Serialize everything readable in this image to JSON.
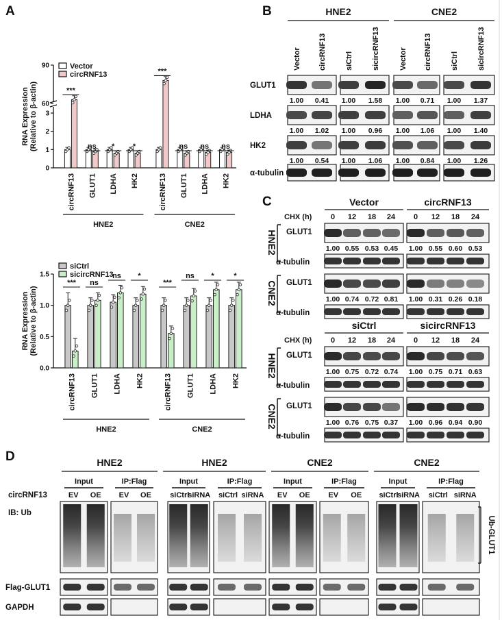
{
  "panels": {
    "A": "A",
    "B": "B",
    "C": "C",
    "D": "D"
  },
  "chart_data": [
    {
      "type": "bar",
      "ylabel": "RNA Expression",
      "ylabel_sub": "(Relative to β-actin)",
      "yticks": [
        "0",
        "1",
        "2",
        "3",
        "60",
        "90"
      ],
      "ylim": [
        0,
        90
      ],
      "axis_break": true,
      "legend": [
        "Vector",
        "circRNF13"
      ],
      "categories": [
        "circRNF13",
        "GLUT1",
        "LDHA",
        "HK2",
        "circRNF13",
        "GLUT1",
        "LDHA",
        "HK2"
      ],
      "groups": [
        "HNE2",
        "CNE2"
      ],
      "series": [
        {
          "name": "Vector",
          "color": "#ffffff",
          "values": [
            1.0,
            1.0,
            1.0,
            1.0,
            1.0,
            1.0,
            1.0,
            1.0
          ]
        },
        {
          "name": "circRNF13",
          "color": "#f2c9c9",
          "values": [
            63,
            0.9,
            0.8,
            0.8,
            78,
            0.8,
            0.85,
            0.85
          ]
        }
      ],
      "significance": [
        "***",
        "ns",
        "*",
        "*",
        "***",
        "ns",
        "ns",
        "ns"
      ]
    },
    {
      "type": "bar",
      "ylabel": "RNA Expression",
      "ylabel_sub": "(Relative to β-actin)",
      "yticks": [
        "0.0",
        "0.5",
        "1.0",
        "1.5"
      ],
      "ylim": [
        0,
        1.5
      ],
      "legend": [
        "siCtrl",
        "sicircRNF13"
      ],
      "categories": [
        "circRNF13",
        "GLUT1",
        "LDHA",
        "HK2",
        "circRNF13",
        "GLUT1",
        "LDHA",
        "HK2"
      ],
      "groups": [
        "HNE2",
        "CNE2"
      ],
      "series": [
        {
          "name": "siCtrl",
          "color": "#c8c8c8",
          "values": [
            1.0,
            1.0,
            1.05,
            1.0,
            1.0,
            1.0,
            1.0,
            1.0
          ]
        },
        {
          "name": "sicircRNF13",
          "color": "#c9efc9",
          "values": [
            0.27,
            1.08,
            1.2,
            1.18,
            0.55,
            1.15,
            1.25,
            1.25
          ]
        }
      ],
      "significance": [
        "***",
        "ns",
        "ns",
        "*",
        "***",
        "ns",
        "*",
        "*"
      ]
    }
  ],
  "blotB": {
    "groups": [
      "HNE2",
      "CNE2"
    ],
    "lanes": [
      "Vector",
      "circRNF13",
      "siCtrl",
      "sicircRNF13",
      "Vector",
      "circRNF13",
      "siCtrl",
      "sicircRNF13"
    ],
    "rows": [
      {
        "label": "GLUT1",
        "values": [
          "1.00",
          "0.41",
          "1.00",
          "1.58",
          "1.00",
          "0.71",
          "1.00",
          "1.37"
        ]
      },
      {
        "label": "LDHA",
        "values": [
          "1.00",
          "1.02",
          "1.00",
          "0.96",
          "1.00",
          "1.06",
          "1.00",
          "1.40"
        ]
      },
      {
        "label": "HK2",
        "values": [
          "1.00",
          "0.54",
          "1.00",
          "1.06",
          "1.00",
          "0.84",
          "1.00",
          "1.26"
        ]
      },
      {
        "label": "α-tubulin",
        "values": []
      }
    ]
  },
  "blotC": {
    "chx_label": "CHX (h)",
    "timepoints": [
      "0",
      "12",
      "18",
      "24"
    ],
    "top": {
      "conditions": [
        "Vector",
        "circRNF13"
      ],
      "cells": [
        {
          "name": "HNE2",
          "values": [
            "1.00",
            "0.55",
            "0.53",
            "0.45",
            "1.00",
            "0.55",
            "0.60",
            "0.53"
          ]
        },
        {
          "name": "CNE2",
          "values": [
            "1.00",
            "0.74",
            "0.72",
            "0.81",
            "1.00",
            "0.31",
            "0.26",
            "0.18"
          ]
        }
      ]
    },
    "bottom": {
      "conditions": [
        "siCtrl",
        "sicircRNF13"
      ],
      "cells": [
        {
          "name": "HNE2",
          "values": [
            "1.00",
            "0.75",
            "0.72",
            "0.74",
            "1.00",
            "0.75",
            "0.71",
            "0.63"
          ]
        },
        {
          "name": "CNE2",
          "values": [
            "1.00",
            "0.76",
            "0.75",
            "0.37",
            "1.00",
            "0.96",
            "0.94",
            "0.90"
          ]
        }
      ]
    },
    "glut1": "GLUT1",
    "tubulin": "α-tubulin"
  },
  "blotD": {
    "cells": [
      "HNE2",
      "HNE2",
      "CNE2",
      "CNE2"
    ],
    "subgroups": [
      "Input",
      "IP:Flag"
    ],
    "row_header": "circRNF13",
    "lanes": [
      [
        "EV",
        "OE"
      ],
      [
        "siCtrl",
        "siRNA"
      ],
      [
        "EV",
        "OE"
      ],
      [
        "siCtrl",
        "siRNA"
      ]
    ],
    "rows": [
      "IB: Ub",
      "Flag-GLUT1",
      "GAPDH"
    ],
    "bracket_label": "Ub-GLUT1"
  }
}
